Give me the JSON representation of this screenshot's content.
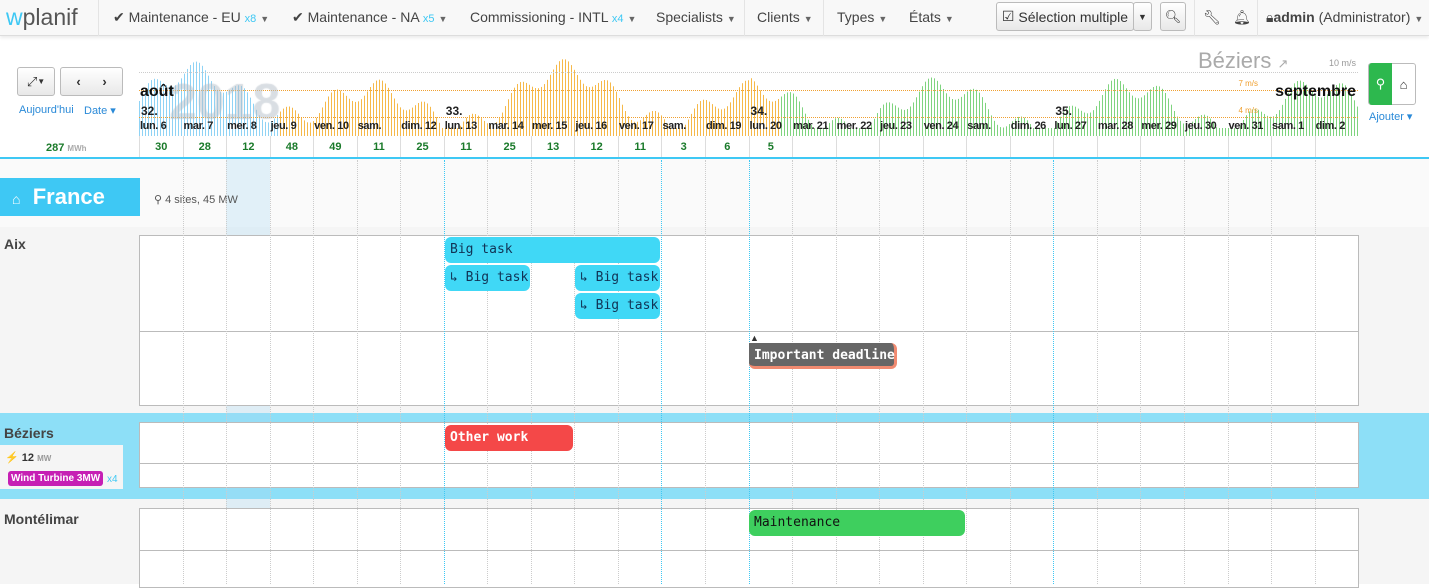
{
  "nav": {
    "logo_w": "w",
    "logo_rest": "planif",
    "filters": [
      {
        "label": "Maintenance - EU",
        "count": "x8",
        "checked": true
      },
      {
        "label": "Maintenance - NA",
        "count": "x5",
        "checked": true
      },
      {
        "label": "Commissioning - INTL",
        "count": "x4",
        "checked": false
      }
    ],
    "menus": [
      "Specialists",
      "Clients",
      "Types",
      "États"
    ],
    "multi_select": "Sélection multiple",
    "user": "admin",
    "role": "(Administrator)"
  },
  "timeline": {
    "today": "Aujourd'hui",
    "date": "Date",
    "total": "287",
    "total_unit": "MWh",
    "year": "2018",
    "month_start": "août",
    "month_end": "septembre",
    "location": "Béziers",
    "wind_max": "10 m/s",
    "wind_hi": "7 m/s",
    "wind_lo": "4 m/s",
    "add": "Ajouter",
    "weeks": [
      {
        "label": "32.",
        "day": 0
      },
      {
        "label": "33.",
        "day": 7
      },
      {
        "label": "34.",
        "day": 14
      },
      {
        "label": "35.",
        "day": 21
      }
    ],
    "days": [
      "lun. 6",
      "mar. 7",
      "mer. 8",
      "jeu. 9",
      "ven. 10",
      "sam.",
      "dim. 12",
      "lun. 13",
      "mar. 14",
      "mer. 15",
      "jeu. 16",
      "ven. 17",
      "sam.",
      "dim. 19",
      "lun. 20",
      "mar. 21",
      "mer. 22",
      "jeu. 23",
      "ven. 24",
      "sam.",
      "dim. 26",
      "lun. 27",
      "mar. 28",
      "mer. 29",
      "jeu. 30",
      "ven. 31",
      "sam. 1",
      "dim. 2"
    ],
    "counts": [
      "30",
      "28",
      "12",
      "48",
      "49",
      "11",
      "25",
      "11",
      "25",
      "13",
      "12",
      "11",
      "3",
      "6",
      "5",
      "",
      "",
      "",
      "",
      "",
      "",
      "",
      "",
      "",
      "",
      "",
      "",
      ""
    ]
  },
  "region": {
    "name": "France",
    "info": "4 sites, 45 MW"
  },
  "sites": [
    {
      "name": "Aix"
    },
    {
      "name": "Béziers",
      "power": "12",
      "power_unit": "MW",
      "equipment": "Wind Turbine 3MW",
      "equipment_count": "x4"
    },
    {
      "name": "Montélimar"
    }
  ],
  "tasks": [
    {
      "label": "Big task",
      "color": "#40d8f6"
    },
    {
      "label": "↳ Big task",
      "color": "#40d8f6"
    },
    {
      "label": "↳ Big task",
      "color": "#40d8f6"
    },
    {
      "label": "↳ Big task",
      "color": "#40d8f6"
    },
    {
      "label": "Important deadline",
      "color": "#666666"
    },
    {
      "label": "Other work",
      "color": "#f44848"
    },
    {
      "label": "Maintenance",
      "color": "#3ecf5e"
    }
  ]
}
